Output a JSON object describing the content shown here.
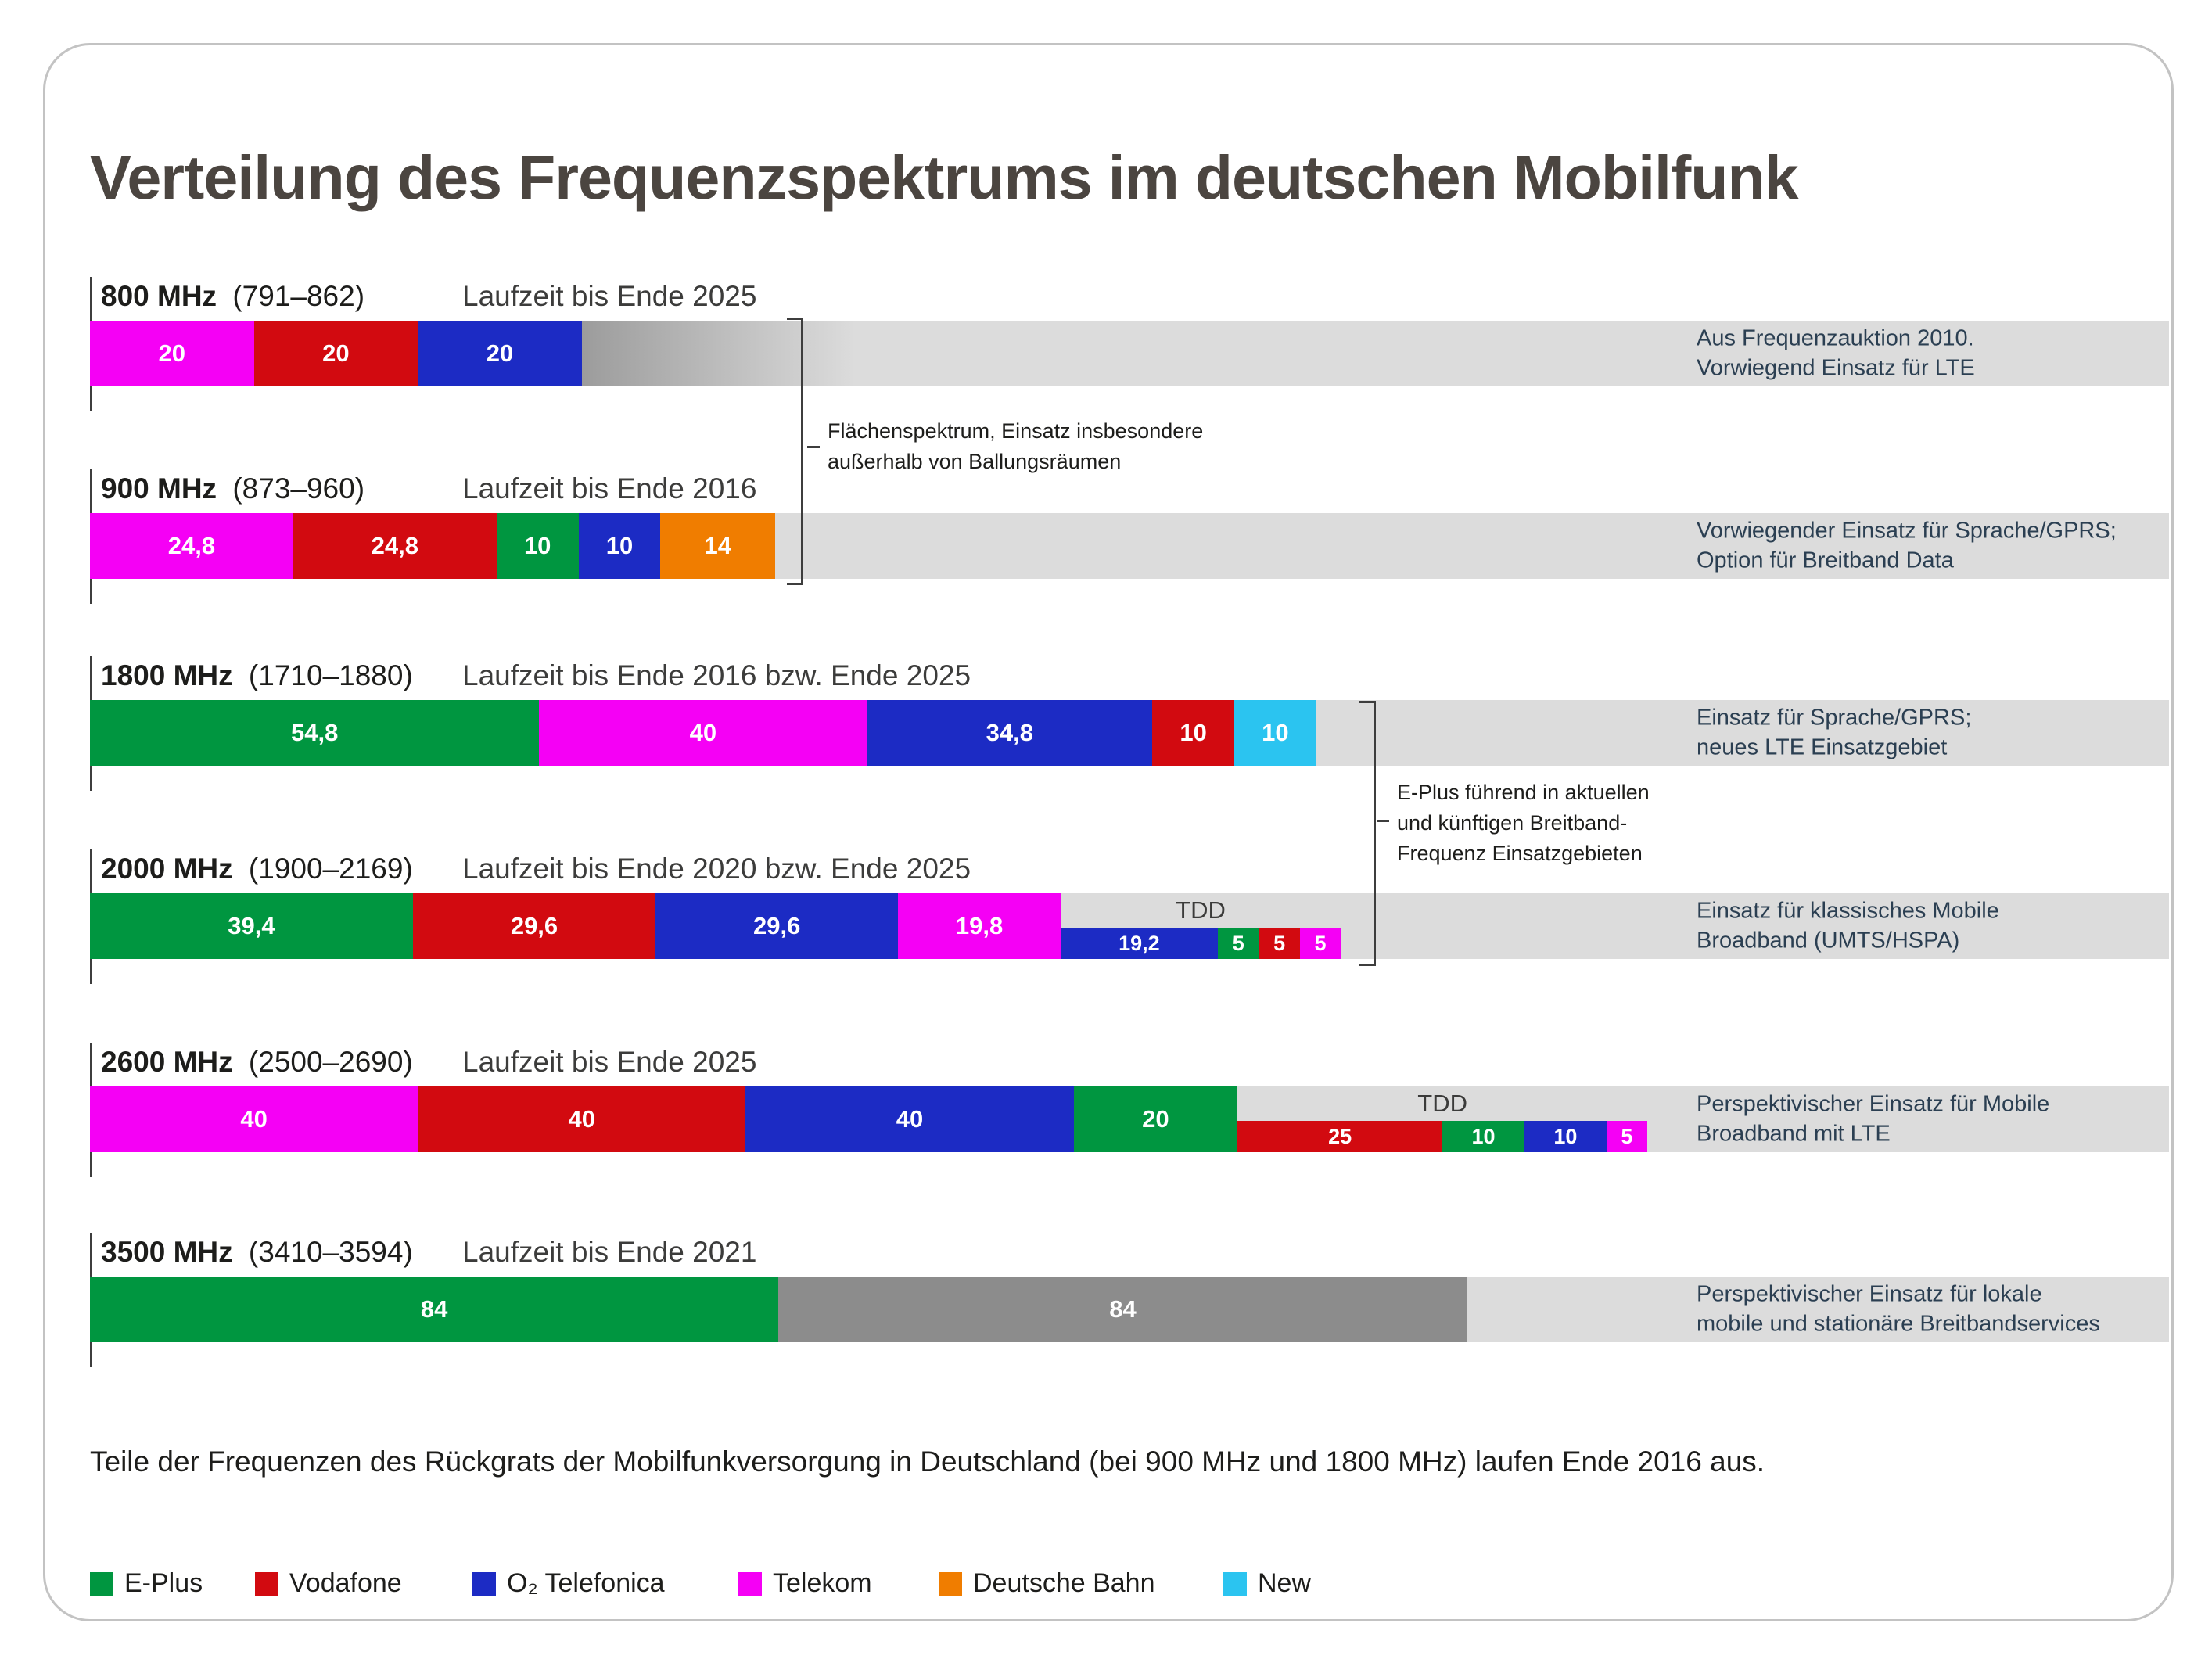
{
  "title": "Verteilung des Frequenzspektrums im deutschen Mobilfunk",
  "footer_note": "Teile der Frequenzen des Rückgrats der Mobilfunkversorgung in Deutschland (bei 900 MHz und 1800 MHz) laufen Ende 2016 aus.",
  "colors": {
    "eplus": "#009640",
    "vodafone": "#d20a10",
    "o2": "#1c2bc4",
    "telekom": "#f500f5",
    "bahn": "#f07d00",
    "new": "#2bc4f0",
    "gray_light": "#dcdcdc",
    "gray_dark": "#8c8c8c"
  },
  "chart_data": {
    "type": "bar",
    "orientation": "horizontal-stacked",
    "unit": "MHz",
    "legend": [
      {
        "label": "E-Plus",
        "color": "eplus"
      },
      {
        "label": "Vodafone",
        "color": "vodafone"
      },
      {
        "label": "O₂ Telefonica",
        "color": "o2"
      },
      {
        "label": "Telekom",
        "color": "telekom"
      },
      {
        "label": "Deutsche Bahn",
        "color": "bahn"
      },
      {
        "label": "New",
        "color": "new"
      }
    ],
    "bands": [
      {
        "name": "800 MHz",
        "range": "(791–862)",
        "laufzeit": "Laufzeit bis Ende 2025",
        "note": "Aus Frequenzauktion 2010.\nVorwiegend Einsatz für LTE",
        "tail": "gradient",
        "segments": [
          {
            "operator": "Telekom",
            "color": "telekom",
            "value": 20,
            "label": "20"
          },
          {
            "operator": "Vodafone",
            "color": "vodafone",
            "value": 20,
            "label": "20"
          },
          {
            "operator": "O₂ Telefonica",
            "color": "o2",
            "value": 20,
            "label": "20"
          }
        ]
      },
      {
        "name": "900 MHz",
        "range": "(873–960)",
        "laufzeit": "Laufzeit bis Ende 2016",
        "note": "Vorwiegender Einsatz für Sprache/GPRS;\nOption für Breitband Data",
        "segments": [
          {
            "operator": "Telekom",
            "color": "telekom",
            "value": 24.8,
            "label": "24,8"
          },
          {
            "operator": "Vodafone",
            "color": "vodafone",
            "value": 24.8,
            "label": "24,8"
          },
          {
            "operator": "E-Plus",
            "color": "eplus",
            "value": 10,
            "label": "10"
          },
          {
            "operator": "O₂ Telefonica",
            "color": "o2",
            "value": 10,
            "label": "10"
          },
          {
            "operator": "Deutsche Bahn",
            "color": "bahn",
            "value": 14,
            "label": "14"
          }
        ]
      },
      {
        "name": "1800 MHz",
        "range": "(1710–1880)",
        "laufzeit": "Laufzeit bis Ende 2016 bzw. Ende 2025",
        "note": "Einsatz für Sprache/GPRS;\nneues LTE Einsatzgebiet",
        "segments": [
          {
            "operator": "E-Plus",
            "color": "eplus",
            "value": 54.8,
            "label": "54,8"
          },
          {
            "operator": "Telekom",
            "color": "telekom",
            "value": 40,
            "label": "40"
          },
          {
            "operator": "O₂ Telefonica",
            "color": "o2",
            "value": 34.8,
            "label": "34,8"
          },
          {
            "operator": "Vodafone",
            "color": "vodafone",
            "value": 10,
            "label": "10"
          },
          {
            "operator": "New",
            "color": "new",
            "value": 10,
            "label": "10"
          }
        ]
      },
      {
        "name": "2000 MHz",
        "range": "(1900–2169)",
        "laufzeit": "Laufzeit bis Ende 2020 bzw. Ende 2025",
        "note": "Einsatz für klassisches Mobile\nBroadband (UMTS/HSPA)",
        "segments": [
          {
            "operator": "E-Plus",
            "color": "eplus",
            "value": 39.4,
            "label": "39,4"
          },
          {
            "operator": "Vodafone",
            "color": "vodafone",
            "value": 29.6,
            "label": "29,6"
          },
          {
            "operator": "O₂ Telefonica",
            "color": "o2",
            "value": 29.6,
            "label": "29,6"
          },
          {
            "operator": "Telekom",
            "color": "telekom",
            "value": 19.8,
            "label": "19,8"
          }
        ],
        "tdd": {
          "label": "TDD",
          "segments": [
            {
              "operator": "O₂ Telefonica",
              "color": "o2",
              "value": 19.2,
              "label": "19,2"
            },
            {
              "operator": "E-Plus",
              "color": "eplus",
              "value": 5,
              "label": "5"
            },
            {
              "operator": "Vodafone",
              "color": "vodafone",
              "value": 5,
              "label": "5"
            },
            {
              "operator": "Telekom",
              "color": "telekom",
              "value": 5,
              "label": "5"
            }
          ]
        }
      },
      {
        "name": "2600 MHz",
        "range": "(2500–2690)",
        "laufzeit": "Laufzeit bis Ende 2025",
        "note": "Perspektivischer Einsatz für Mobile\nBroadband mit LTE",
        "segments": [
          {
            "operator": "Telekom",
            "color": "telekom",
            "value": 40,
            "label": "40"
          },
          {
            "operator": "Vodafone",
            "color": "vodafone",
            "value": 40,
            "label": "40"
          },
          {
            "operator": "O₂ Telefonica",
            "color": "o2",
            "value": 40,
            "label": "40"
          },
          {
            "operator": "E-Plus",
            "color": "eplus",
            "value": 20,
            "label": "20"
          }
        ],
        "tdd": {
          "label": "TDD",
          "segments": [
            {
              "operator": "Vodafone",
              "color": "vodafone",
              "value": 25,
              "label": "25"
            },
            {
              "operator": "E-Plus",
              "color": "eplus",
              "value": 10,
              "label": "10"
            },
            {
              "operator": "O₂ Telefonica",
              "color": "o2",
              "value": 10,
              "label": "10"
            },
            {
              "operator": "Telekom",
              "color": "telekom",
              "value": 5,
              "label": "5"
            }
          ]
        }
      },
      {
        "name": "3500 MHz",
        "range": "(3410–3594)",
        "laufzeit": "Laufzeit bis Ende 2021",
        "note": "Perspektivischer Einsatz für lokale\nmobile und stationäre Breitbandservices",
        "segments": [
          {
            "operator": "E-Plus",
            "color": "eplus",
            "value": 84,
            "label": "84"
          },
          {
            "color": "gray_dark",
            "value": 84,
            "label": "84"
          }
        ]
      }
    ],
    "annotations": [
      {
        "text": "Flächenspektrum, Einsatz insbesondere\naußerhalb von Ballungsräumen"
      },
      {
        "text": "E-Plus führend in aktuellen\nund künftigen Breitband-\nFrequenz Einsatzgebieten"
      }
    ]
  }
}
